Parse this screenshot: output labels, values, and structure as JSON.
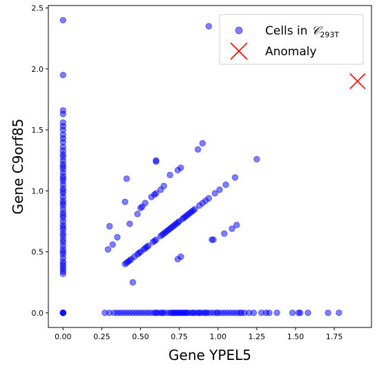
{
  "chart_data": {
    "type": "scatter",
    "xlabel": "Gene YPEL5",
    "ylabel": "Gene C9orf85",
    "xlim": [
      -0.095,
      1.99
    ],
    "ylim": [
      -0.12,
      2.52
    ],
    "x_ticks": [
      "0.00",
      "0.25",
      "0.50",
      "0.75",
      "1.00",
      "1.25",
      "1.50",
      "1.75"
    ],
    "y_ticks": [
      "0.0",
      "0.5",
      "1.0",
      "1.5",
      "2.0",
      "2.5"
    ],
    "grid": false,
    "legend_placement": "top-right",
    "legend": {
      "cells_prefix": "Cells in ",
      "cells_symbol": "𝒞",
      "cells_subscript": "293T",
      "anomaly_label": "Anomaly"
    },
    "colors": {
      "cells": "#0000ff",
      "anomaly": "#ff0000"
    },
    "anomaly": {
      "x": 1.9,
      "y": 1.9
    },
    "series_cells": {
      "x_zero_column_y": [
        0,
        0,
        0,
        0,
        0.32,
        0.34,
        0.36,
        0.38,
        0.4,
        0.42,
        0.45,
        0.48,
        0.5,
        0.52,
        0.55,
        0.58,
        0.6,
        0.63,
        0.65,
        0.68,
        0.7,
        0.72,
        0.75,
        0.78,
        0.8,
        0.82,
        0.85,
        0.88,
        0.9,
        0.92,
        0.95,
        0.98,
        1.0,
        1.02,
        1.05,
        1.08,
        1.1,
        1.12,
        1.15,
        1.18,
        1.2,
        1.22,
        1.25,
        1.28,
        1.3,
        1.33,
        1.36,
        1.4,
        1.43,
        1.46,
        1.5,
        1.53,
        1.56,
        1.63,
        1.66,
        1.95,
        2.4
      ],
      "y_zero_row_x": [
        0.27,
        0.3,
        0.33,
        0.35,
        0.37,
        0.39,
        0.41,
        0.43,
        0.45,
        0.47,
        0.49,
        0.51,
        0.53,
        0.55,
        0.57,
        0.59,
        0.6,
        0.61,
        0.63,
        0.64,
        0.65,
        0.67,
        0.69,
        0.7,
        0.71,
        0.72,
        0.73,
        0.74,
        0.75,
        0.76,
        0.77,
        0.78,
        0.79,
        0.8,
        0.81,
        0.83,
        0.84,
        0.85,
        0.87,
        0.88,
        0.89,
        0.91,
        0.92,
        0.93,
        0.95,
        0.97,
        0.99,
        1.0,
        1.02,
        1.04,
        1.06,
        1.08,
        1.1,
        1.12,
        1.14,
        1.15,
        1.17,
        1.2,
        1.23,
        1.28,
        1.31,
        1.33,
        1.38,
        1.48,
        1.52,
        1.53,
        1.58,
        1.71,
        1.78
      ],
      "diagonal_points": [
        [
          0.4,
          0.4
        ],
        [
          0.41,
          0.41
        ],
        [
          0.42,
          0.42
        ],
        [
          0.43,
          0.43
        ],
        [
          0.44,
          0.44
        ],
        [
          0.46,
          0.46
        ],
        [
          0.48,
          0.48
        ],
        [
          0.49,
          0.49
        ],
        [
          0.5,
          0.5
        ],
        [
          0.52,
          0.52
        ],
        [
          0.53,
          0.53
        ],
        [
          0.54,
          0.54
        ],
        [
          0.55,
          0.55
        ],
        [
          0.58,
          0.58
        ],
        [
          0.59,
          0.59
        ],
        [
          0.6,
          0.6
        ],
        [
          0.63,
          0.63
        ],
        [
          0.64,
          0.64
        ],
        [
          0.65,
          0.65
        ],
        [
          0.66,
          0.66
        ],
        [
          0.67,
          0.67
        ],
        [
          0.68,
          0.68
        ],
        [
          0.69,
          0.69
        ],
        [
          0.7,
          0.7
        ],
        [
          0.71,
          0.71
        ],
        [
          0.72,
          0.72
        ],
        [
          0.73,
          0.73
        ],
        [
          0.74,
          0.74
        ],
        [
          0.75,
          0.75
        ],
        [
          0.77,
          0.77
        ],
        [
          0.78,
          0.78
        ],
        [
          0.79,
          0.79
        ],
        [
          0.8,
          0.8
        ],
        [
          0.81,
          0.81
        ],
        [
          0.82,
          0.82
        ],
        [
          0.83,
          0.83
        ],
        [
          0.84,
          0.84
        ],
        [
          0.85,
          0.85
        ],
        [
          0.88,
          0.88
        ],
        [
          0.9,
          0.9
        ],
        [
          0.92,
          0.92
        ],
        [
          0.94,
          0.94
        ],
        [
          0.98,
          0.98
        ],
        [
          1.01,
          1.01
        ],
        [
          1.05,
          1.05
        ],
        [
          0.29,
          0.52
        ],
        [
          0.3,
          0.71
        ],
        [
          0.32,
          0.56
        ],
        [
          0.35,
          0.62
        ],
        [
          0.4,
          0.91
        ],
        [
          0.41,
          1.1
        ],
        [
          0.43,
          0.73
        ],
        [
          0.45,
          0.25
        ],
        [
          0.48,
          0.81
        ],
        [
          0.5,
          0.86
        ],
        [
          0.51,
          0.87
        ],
        [
          0.53,
          0.9
        ],
        [
          0.57,
          0.95
        ],
        [
          0.59,
          0.97
        ],
        [
          0.6,
          0.98
        ],
        [
          0.6,
          1.24
        ],
        [
          0.6,
          1.25
        ],
        [
          0.63,
          1.01
        ],
        [
          0.65,
          1.04
        ],
        [
          0.69,
          1.13
        ],
        [
          0.74,
          1.17
        ],
        [
          0.76,
          1.19
        ],
        [
          0.74,
          0.44
        ],
        [
          0.76,
          0.46
        ],
        [
          0.87,
          1.34
        ],
        [
          0.9,
          1.39
        ],
        [
          0.94,
          2.35
        ],
        [
          0.96,
          0.6
        ],
        [
          0.97,
          0.6
        ],
        [
          1.04,
          0.65
        ],
        [
          1.09,
          0.69
        ],
        [
          1.12,
          0.72
        ],
        [
          1.11,
          1.11
        ],
        [
          1.25,
          1.26
        ]
      ]
    }
  }
}
